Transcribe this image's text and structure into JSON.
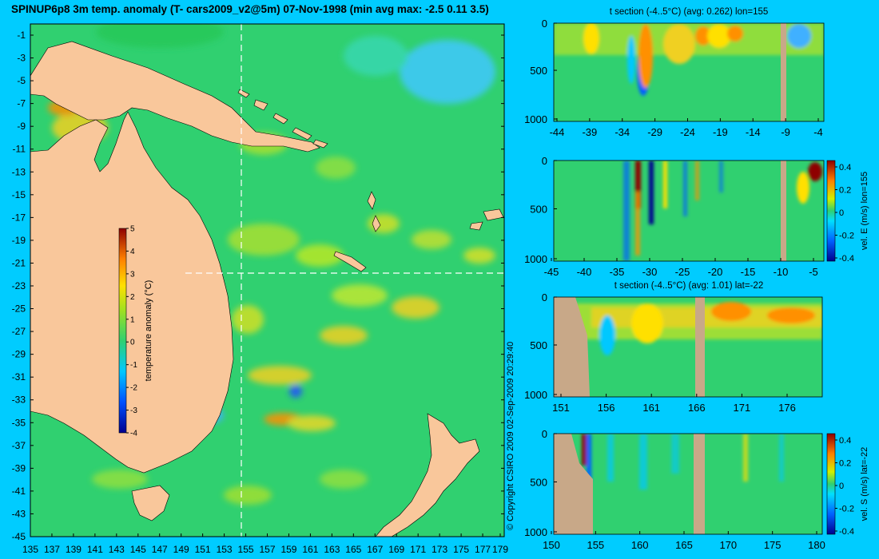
{
  "title": "SPINUP6p8 3m temp. anomaly (T- cars2009_v2@5m) 07-Nov-1998 (min avg max: -2.5 0.11 3.5)",
  "copyright": "© Copyright CSIRO 2009   02-Sep-2009 20:29:40",
  "colors": {
    "background": "#00ccff",
    "land": "#f9c79b",
    "section_land": "#c8a888",
    "ocean_base": "#30d070"
  },
  "map": {
    "lon_ticks": [
      "135",
      "137",
      "139",
      "141",
      "143",
      "145",
      "147",
      "149",
      "151",
      "153",
      "155",
      "157",
      "159",
      "161",
      "163",
      "165",
      "167",
      "169",
      "171",
      "173",
      "175",
      "177",
      "179"
    ],
    "lat_ticks": [
      "-1",
      "-3",
      "-5",
      "-7",
      "-9",
      "-11",
      "-13",
      "-15",
      "-17",
      "-19",
      "-21",
      "-23",
      "-25",
      "-27",
      "-29",
      "-31",
      "-33",
      "-35",
      "-37",
      "-39",
      "-41",
      "-43",
      "-45"
    ],
    "colorbar": {
      "label": "temperature anomaly (°C)",
      "ticks": [
        "5",
        "4",
        "3",
        "2",
        "1",
        "0",
        "-1",
        "-2",
        "-3",
        "-4"
      ]
    }
  },
  "panels": [
    {
      "id": "p1",
      "title": "t section (-4..5°C) (avg: 0.262) lon=155",
      "y_ticks": [
        "0",
        "500",
        "1000"
      ],
      "x_ticks": [
        "-44",
        "-39",
        "-34",
        "-29",
        "-24",
        "-19",
        "-14",
        "-9",
        "-4"
      ]
    },
    {
      "id": "p2",
      "title": "",
      "y_ticks": [
        "0",
        "500",
        "1000"
      ],
      "x_ticks": [
        "-45",
        "-40",
        "-35",
        "-30",
        "-25",
        "-20",
        "-15",
        "-10",
        "-5"
      ],
      "cbar_label": "vel. E (m/s) lon=155",
      "cbar_ticks": [
        "0.4",
        "0.2",
        "0",
        "-0.2",
        "-0.4"
      ]
    },
    {
      "id": "p3",
      "title": "t section (-4..5°C) (avg: 1.01) lat=-22",
      "y_ticks": [
        "0",
        "500",
        "1000"
      ],
      "x_ticks": [
        "151",
        "156",
        "161",
        "166",
        "171",
        "176"
      ]
    },
    {
      "id": "p4",
      "title": "",
      "y_ticks": [
        "0",
        "500",
        "1000"
      ],
      "x_ticks": [
        "150",
        "155",
        "160",
        "165",
        "170",
        "175",
        "180"
      ],
      "cbar_label": "vel. S (m/s) lat=-22",
      "cbar_ticks": [
        "0.4",
        "0.2",
        "0",
        "-0.2",
        "-0.4"
      ]
    }
  ]
}
